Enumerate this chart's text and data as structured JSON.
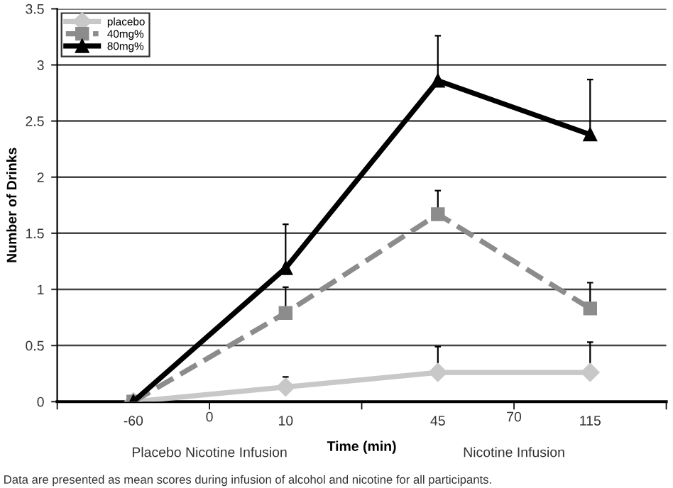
{
  "chart_data": {
    "type": "line",
    "xlabel": "Time (min)",
    "ylabel": "Number of Drinks",
    "categories": [
      "-60",
      "10",
      "45",
      "115"
    ],
    "series": [
      {
        "name": "placebo",
        "color": "#c8c8c8",
        "marker": "diamond",
        "line_style": "solid",
        "values": [
          0,
          0.13,
          0.26,
          0.26
        ],
        "errors": [
          null,
          [
            0.13,
            0.22
          ],
          [
            0.26,
            0.49
          ],
          [
            0.26,
            0.53
          ]
        ]
      },
      {
        "name": "40mg%",
        "color": "#8c8c8c",
        "marker": "square",
        "line_style": "dashed",
        "values": [
          0,
          0.79,
          1.67,
          0.83
        ],
        "errors": [
          null,
          [
            0.79,
            1.02
          ],
          [
            1.67,
            1.88
          ],
          [
            0.83,
            1.06
          ]
        ]
      },
      {
        "name": "80mg%",
        "color": "#000000",
        "marker": "triangle",
        "line_style": "solid",
        "values": [
          0,
          1.19,
          2.86,
          2.38
        ],
        "errors": [
          null,
          [
            1.19,
            1.58
          ],
          [
            2.86,
            3.26
          ],
          [
            2.38,
            2.87
          ]
        ]
      }
    ],
    "ylim": [
      0,
      3.5
    ],
    "yticks": [
      0,
      0.5,
      1,
      1.5,
      2,
      2.5,
      3,
      3.5
    ],
    "grid": "y",
    "legend": "top left",
    "annotations": [
      "0",
      "Placebo Nicotine Infusion",
      "70",
      "Nicotine Infusion",
      "Data are presented as mean scores during infusion of alcohol and nicotine for all participants."
    ]
  }
}
